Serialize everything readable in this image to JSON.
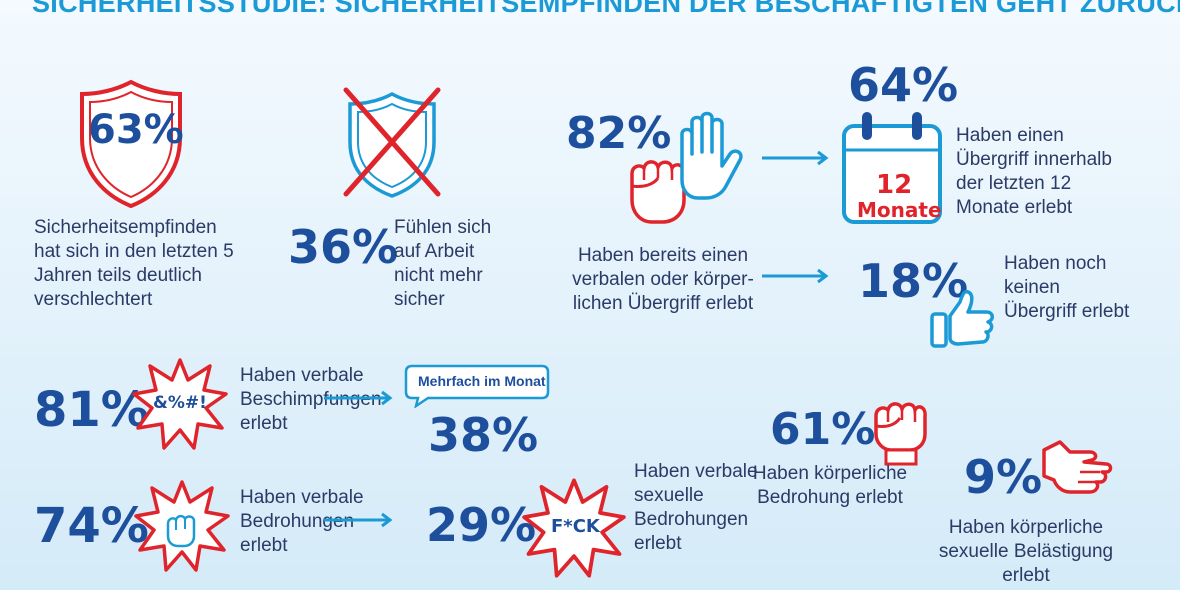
{
  "title": "SICHERHEITSSTUDIE: SICHERHEITSEMPFINDEN DER BESCHÄFTIGTEN GEHT ZURÜCK",
  "stats": {
    "shield": {
      "value": "63%",
      "text": "Sicherheitsempfinden hat sich in den letzten 5 Jahren teils deutlich verschlechtert"
    },
    "unsafe": {
      "value": "36%",
      "text": "Fühlen sich auf Arbeit nicht mehr sicher"
    },
    "attack": {
      "value": "82%",
      "text": "Haben bereits einen verbalen oder körper-lichen Übergriff erlebt"
    },
    "recent": {
      "value": "64%",
      "text": "Haben einen Übergriff innerhalb der letzten 12 Monate erlebt",
      "calendar_number": "12",
      "calendar_label": "Monate"
    },
    "none": {
      "value": "18%",
      "text": "Haben noch keinen Übergriff erlebt"
    },
    "insults": {
      "value": "81%",
      "text": "Haben verbale Beschimpfungen erlebt",
      "symbol": "&%#!"
    },
    "monthly": {
      "value": "38%",
      "bubble": "Mehrfach im Monat"
    },
    "threats": {
      "value": "74%",
      "text": "Haben verbale Bedrohungen erlebt"
    },
    "sexual_threats": {
      "value": "29%",
      "text": "Haben verbale sexuelle Bedrohungen erlebt",
      "symbol": "F*CK"
    },
    "physical_threat": {
      "value": "61%",
      "text": "Haben körperliche Bedrohung erlebt"
    },
    "harassment": {
      "value": "9%",
      "text": "Haben körperliche sexuelle Belästigung erlebt"
    }
  },
  "colors": {
    "accent": "#1b9ad6",
    "navy": "#1d4f9c",
    "red": "#e0242b"
  }
}
